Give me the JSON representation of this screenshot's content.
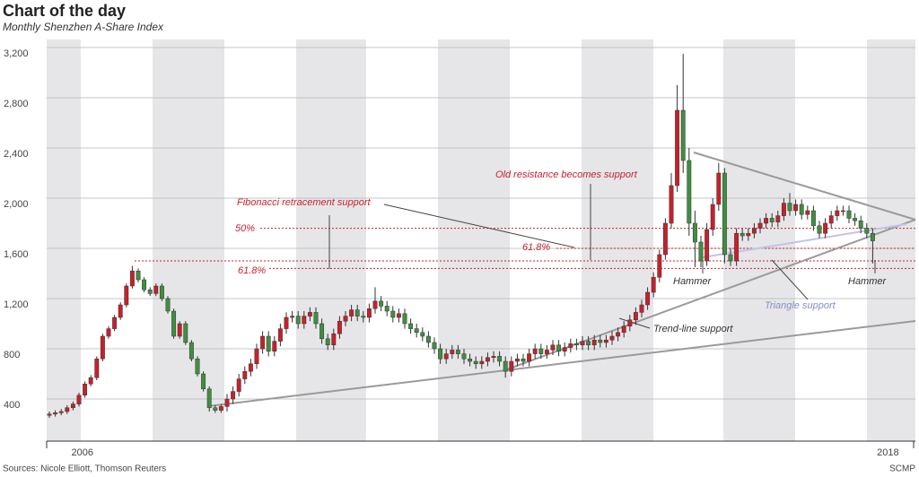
{
  "chart_data": {
    "type": "candlestick",
    "title": "Chart of the day",
    "subtitle": "Monthly Shenzhen A-Share Index",
    "source": "Sources: Nicole Elliott, Thomson Reuters",
    "credit": "SCMP",
    "categories": [
      null,
      null,
      null,
      "2006",
      null,
      null,
      null,
      null,
      null,
      null,
      null,
      null,
      null,
      null,
      null,
      null,
      null,
      null,
      null,
      null,
      null,
      null,
      null,
      null,
      null,
      null,
      null,
      null,
      null,
      null,
      null,
      null,
      null,
      null,
      null,
      null,
      null,
      null,
      null,
      null,
      null,
      null,
      null,
      null,
      null,
      null,
      null,
      null,
      null,
      null,
      null,
      null,
      null,
      null,
      null,
      null,
      null,
      null,
      null,
      null,
      null,
      null,
      null,
      null,
      null,
      null,
      null,
      null,
      null,
      null,
      null,
      null,
      null,
      null,
      null,
      null,
      null,
      null,
      null,
      null,
      null,
      null,
      null,
      null,
      null,
      null,
      null,
      null,
      null,
      null,
      null,
      null,
      null,
      null,
      null,
      null,
      null,
      null,
      null,
      null,
      null,
      null,
      null,
      null,
      null,
      null,
      null,
      null,
      null,
      null,
      null,
      null,
      null,
      null,
      null,
      null,
      null,
      null,
      null,
      null,
      null,
      null,
      null,
      null,
      null,
      null,
      null,
      null,
      null,
      null,
      null,
      null,
      null,
      null,
      null,
      null,
      null,
      null,
      null,
      "2018"
    ],
    "open": [
      270,
      280,
      290,
      300,
      330,
      360,
      430,
      520,
      570,
      720,
      900,
      960,
      1050,
      1150,
      1300,
      1420,
      1350,
      1270,
      1240,
      1300,
      1200,
      1100,
      900,
      1000,
      850,
      720,
      600,
      480,
      330,
      310,
      340,
      400,
      460,
      560,
      620,
      680,
      800,
      900,
      780,
      860,
      960,
      1050,
      1060,
      1000,
      1060,
      1090,
      1000,
      880,
      830,
      920,
      1020,
      1060,
      1110,
      1060,
      1050,
      1120,
      1180,
      1140,
      1100,
      1050,
      1080,
      1000,
      960,
      930,
      900,
      850,
      800,
      720,
      760,
      790,
      760,
      720,
      700,
      680,
      700,
      730,
      740,
      700,
      620,
      700,
      720,
      700,
      760,
      800,
      760,
      790,
      830,
      780,
      810,
      840,
      830,
      860,
      830,
      870,
      850,
      870,
      900,
      930,
      980,
      1030,
      1090,
      1150,
      1250,
      1370,
      1550,
      1800,
      2100,
      2700,
      2300,
      1800,
      1650,
      1500,
      1750,
      1950,
      2200,
      1550,
      1500,
      1720,
      1700,
      1720,
      1760,
      1800,
      1840,
      1810,
      1860,
      1960,
      1900,
      1950,
      1870,
      1900,
      1780,
      1720,
      1800,
      1860,
      1900,
      1900,
      1840,
      1820,
      1760,
      1720
    ],
    "high": [
      300,
      310,
      320,
      350,
      380,
      450,
      540,
      590,
      740,
      920,
      980,
      1070,
      1170,
      1320,
      1460,
      1440,
      1370,
      1290,
      1320,
      1320,
      1220,
      1120,
      1020,
      1020,
      870,
      740,
      620,
      500,
      350,
      360,
      440,
      500,
      600,
      660,
      720,
      840,
      940,
      940,
      900,
      1000,
      1090,
      1100,
      1100,
      1100,
      1130,
      1130,
      1040,
      920,
      960,
      1060,
      1100,
      1150,
      1150,
      1100,
      1160,
      1290,
      1220,
      1180,
      1140,
      1120,
      1120,
      1040,
      1000,
      970,
      940,
      890,
      840,
      800,
      830,
      830,
      800,
      760,
      740,
      740,
      770,
      780,
      780,
      740,
      740,
      760,
      760,
      800,
      840,
      840,
      830,
      870,
      870,
      850,
      880,
      880,
      900,
      900,
      910,
      910,
      910,
      940,
      970,
      1020,
      1070,
      1130,
      1190,
      1290,
      1410,
      1590,
      1840,
      2200,
      2900,
      3150,
      2400,
      1900,
      1700,
      1800,
      2000,
      2280,
      2240,
      1600,
      1760,
      1760,
      1760,
      1800,
      1840,
      1880,
      1880,
      1900,
      2000,
      2040,
      1990,
      1990,
      1940,
      1940,
      1820,
      1840,
      1900,
      1940,
      1940,
      1940,
      1880,
      1860,
      1800,
      1760
    ],
    "low": [
      250,
      260,
      270,
      280,
      310,
      340,
      410,
      500,
      550,
      700,
      880,
      940,
      1030,
      1130,
      1280,
      1330,
      1250,
      1220,
      1220,
      1180,
      1080,
      880,
      880,
      830,
      700,
      580,
      460,
      300,
      290,
      290,
      300,
      360,
      420,
      520,
      580,
      640,
      760,
      740,
      740,
      820,
      920,
      1010,
      960,
      960,
      1020,
      960,
      840,
      790,
      790,
      880,
      980,
      1020,
      1020,
      1010,
      1010,
      1080,
      1100,
      1060,
      1010,
      1010,
      960,
      920,
      890,
      860,
      810,
      760,
      680,
      680,
      720,
      720,
      680,
      660,
      640,
      640,
      660,
      690,
      660,
      570,
      580,
      660,
      660,
      660,
      720,
      720,
      720,
      750,
      740,
      740,
      770,
      790,
      790,
      790,
      790,
      810,
      810,
      830,
      860,
      890,
      940,
      990,
      1050,
      1110,
      1210,
      1330,
      1510,
      1760,
      2050,
      2200,
      1700,
      1450,
      1450,
      1460,
      1700,
      1900,
      1480,
      1460,
      1460,
      1660,
      1660,
      1680,
      1720,
      1760,
      1770,
      1770,
      1820,
      1860,
      1860,
      1830,
      1830,
      1740,
      1680,
      1680,
      1760,
      1820,
      1860,
      1800,
      1780,
      1720,
      1680,
      1480
    ],
    "close": [
      280,
      290,
      300,
      330,
      360,
      430,
      520,
      570,
      720,
      900,
      960,
      1050,
      1150,
      1300,
      1420,
      1350,
      1270,
      1240,
      1300,
      1200,
      1100,
      900,
      1000,
      850,
      720,
      600,
      480,
      330,
      310,
      340,
      400,
      460,
      560,
      620,
      680,
      800,
      900,
      780,
      860,
      960,
      1050,
      1060,
      1000,
      1060,
      1090,
      1000,
      880,
      830,
      920,
      1020,
      1060,
      1110,
      1060,
      1050,
      1120,
      1180,
      1140,
      1100,
      1050,
      1080,
      1000,
      960,
      930,
      900,
      850,
      800,
      720,
      760,
      790,
      760,
      720,
      700,
      680,
      700,
      730,
      740,
      700,
      620,
      700,
      720,
      700,
      760,
      800,
      760,
      790,
      830,
      780,
      810,
      840,
      830,
      860,
      830,
      870,
      850,
      870,
      900,
      930,
      980,
      1030,
      1090,
      1150,
      1250,
      1370,
      1550,
      1800,
      2100,
      2700,
      2300,
      1800,
      1650,
      1500,
      1750,
      1950,
      2200,
      1550,
      1500,
      1720,
      1700,
      1720,
      1760,
      1800,
      1840,
      1810,
      1860,
      1960,
      1900,
      1950,
      1870,
      1900,
      1780,
      1720,
      1800,
      1860,
      1900,
      1900,
      1840,
      1820,
      1760,
      1720,
      1660
    ],
    "up_color": "#c8202c",
    "down_color": "#3f8f3f",
    "ylim": [
      60,
      3260
    ],
    "yticks": [
      400,
      800,
      {
        "value": 1200,
        "label": "1,200"
      },
      {
        "value": 1600,
        "label": "1,600"
      },
      {
        "value": 2000,
        "label": "2,000"
      },
      {
        "value": 2400,
        "label": "2,400"
      },
      {
        "value": 2800,
        "label": "2,800"
      },
      {
        "value": 3200,
        "label": "3,200"
      }
    ],
    "grid": true,
    "levels": [
      1760,
      1600,
      1500,
      1440
    ],
    "annotations": [
      "Fibonacci retracement support",
      "Old resistance becomes support",
      "50%",
      "61.8%",
      "61.8%",
      "Hammer",
      "Hammer",
      "Triangle support",
      "Trend-line support"
    ]
  }
}
